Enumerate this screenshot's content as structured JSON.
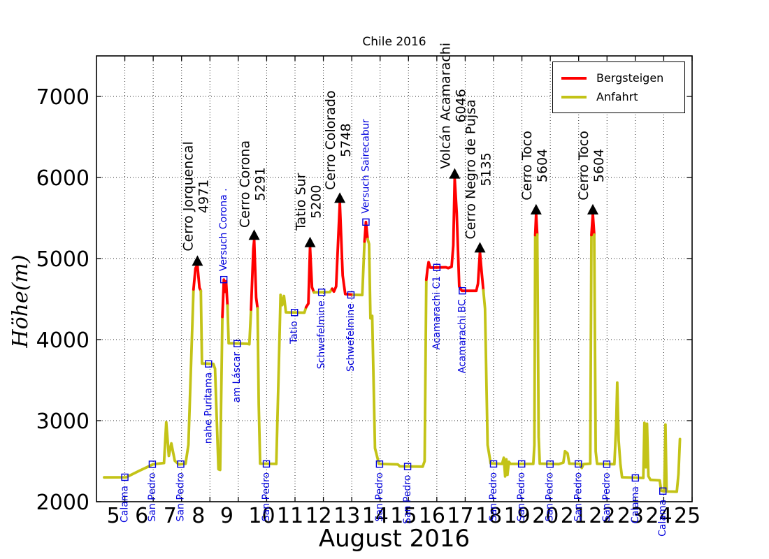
{
  "title": "Chile 2016",
  "xlabel": "August 2016",
  "ylabel": "Höhe(m)",
  "legend": {
    "items": [
      {
        "label": "Bergsteigen",
        "color": "#ff0000"
      },
      {
        "label": "Anfahrt",
        "color": "#c3c317"
      }
    ]
  },
  "colors": {
    "bergsteigen": "#ff0000",
    "anfahrt": "#c3c317",
    "waypoint_blue": "#0000dd",
    "annotation_black": "#000000",
    "grid": "#000000"
  },
  "chart_data": {
    "type": "line",
    "xlabel": "August 2016",
    "ylabel": "Höhe(m)",
    "title": "Chile 2016",
    "xlim": [
      4,
      25
    ],
    "ylim": [
      2000,
      7500
    ],
    "x_ticks": [
      5,
      6,
      7,
      8,
      9,
      10,
      11,
      12,
      13,
      14,
      15,
      16,
      17,
      18,
      19,
      20,
      21,
      22,
      23,
      24,
      25
    ],
    "y_ticks": [
      2000,
      3000,
      4000,
      5000,
      6000,
      7000
    ],
    "grid": "dotted",
    "legend_position": "upper right",
    "series": [
      {
        "name": "Bergsteigen",
        "color": "#ff0000"
      },
      {
        "name": "Anfahrt",
        "color": "#c3c317"
      }
    ],
    "segments": [
      {
        "series": "Anfahrt",
        "points": [
          [
            4.27,
            2300
          ],
          [
            5.05,
            2302
          ],
          [
            5.5,
            2380
          ],
          [
            6.0,
            2462
          ],
          [
            6.38,
            2478
          ],
          [
            6.46,
            2980
          ],
          [
            6.55,
            2565
          ],
          [
            6.64,
            2720
          ],
          [
            6.76,
            2505
          ],
          [
            6.9,
            2460
          ],
          [
            7.14,
            2468
          ],
          [
            7.24,
            2700
          ],
          [
            7.42,
            4620
          ]
        ]
      },
      {
        "series": "Bergsteigen",
        "points": [
          [
            7.42,
            4620
          ],
          [
            7.49,
            4880
          ],
          [
            7.56,
            4920
          ],
          [
            7.63,
            4640
          ],
          [
            7.68,
            4600
          ]
        ]
      },
      {
        "series": "Anfahrt",
        "points": [
          [
            7.68,
            4600
          ],
          [
            7.72,
            3705
          ],
          [
            8.12,
            3700
          ],
          [
            8.18,
            3640
          ],
          [
            8.3,
            2400
          ],
          [
            8.36,
            2392
          ],
          [
            8.44,
            4280
          ]
        ]
      },
      {
        "series": "Bergsteigen",
        "points": [
          [
            8.44,
            4280
          ],
          [
            8.49,
            4740
          ],
          [
            8.53,
            4590
          ],
          [
            8.57,
            4720
          ],
          [
            8.62,
            4420
          ]
        ]
      },
      {
        "series": "Anfahrt",
        "points": [
          [
            8.62,
            4420
          ],
          [
            8.66,
            3955
          ],
          [
            9.32,
            3948
          ],
          [
            9.39,
            3942
          ],
          [
            9.45,
            4370
          ]
        ]
      },
      {
        "series": "Bergsteigen",
        "points": [
          [
            9.45,
            4370
          ],
          [
            9.53,
            5120
          ],
          [
            9.56,
            5230
          ],
          [
            9.63,
            4520
          ],
          [
            9.68,
            4385
          ]
        ]
      },
      {
        "series": "Anfahrt",
        "points": [
          [
            9.68,
            4385
          ],
          [
            9.72,
            3200
          ],
          [
            9.77,
            2470
          ],
          [
            10.34,
            2466
          ],
          [
            10.43,
            3700
          ],
          [
            10.49,
            4552
          ],
          [
            10.55,
            4425
          ],
          [
            10.61,
            4538
          ],
          [
            10.68,
            4336
          ],
          [
            11.33,
            4332
          ],
          [
            11.39,
            4398
          ]
        ]
      },
      {
        "series": "Bergsteigen",
        "points": [
          [
            11.39,
            4398
          ],
          [
            11.47,
            4445
          ],
          [
            11.53,
            5140
          ],
          [
            11.6,
            4645
          ],
          [
            11.67,
            4582
          ]
        ]
      },
      {
        "series": "Anfahrt",
        "points": [
          [
            11.67,
            4582
          ],
          [
            12.23,
            4586
          ],
          [
            12.31,
            4628
          ]
        ]
      },
      {
        "series": "Bergsteigen",
        "points": [
          [
            12.31,
            4628
          ],
          [
            12.37,
            4592
          ],
          [
            12.45,
            4655
          ],
          [
            12.58,
            5690
          ],
          [
            12.68,
            4790
          ],
          [
            12.77,
            4562
          ],
          [
            13.06,
            4553
          ]
        ]
      },
      {
        "series": "Anfahrt",
        "points": [
          [
            13.06,
            4553
          ],
          [
            13.37,
            4550
          ],
          [
            13.45,
            5210
          ]
        ]
      },
      {
        "series": "Bergsteigen",
        "points": [
          [
            13.45,
            5210
          ],
          [
            13.5,
            5450
          ],
          [
            13.56,
            5240
          ]
        ]
      },
      {
        "series": "Anfahrt",
        "points": [
          [
            13.56,
            5240
          ],
          [
            13.61,
            5180
          ],
          [
            13.66,
            4262
          ],
          [
            13.72,
            4292
          ],
          [
            13.82,
            2660
          ],
          [
            13.96,
            2466
          ],
          [
            14.62,
            2460
          ],
          [
            14.7,
            2436
          ],
          [
            15.5,
            2433
          ],
          [
            15.57,
            2500
          ],
          [
            15.63,
            4740
          ]
        ]
      },
      {
        "series": "Bergsteigen",
        "points": [
          [
            15.63,
            4740
          ],
          [
            15.67,
            4870
          ],
          [
            15.71,
            4955
          ],
          [
            15.77,
            4888
          ],
          [
            16.32,
            4892
          ],
          [
            16.4,
            4882
          ],
          [
            16.52,
            4898
          ],
          [
            16.58,
            5160
          ],
          [
            16.63,
            5990
          ],
          [
            16.7,
            5560
          ],
          [
            16.79,
            4655
          ],
          [
            16.88,
            4602
          ],
          [
            17.39,
            4602
          ],
          [
            17.45,
            4690
          ],
          [
            17.52,
            5080
          ],
          [
            17.58,
            4830
          ],
          [
            17.64,
            4608
          ]
        ]
      },
      {
        "series": "Anfahrt",
        "points": [
          [
            17.64,
            4608
          ],
          [
            17.7,
            4380
          ],
          [
            17.79,
            2700
          ],
          [
            17.9,
            2472
          ],
          [
            18.3,
            2466
          ],
          [
            18.36,
            2542
          ],
          [
            18.41,
            2312
          ],
          [
            18.45,
            2522
          ],
          [
            18.49,
            2332
          ],
          [
            18.54,
            2492
          ],
          [
            18.6,
            2466
          ],
          [
            19.4,
            2466
          ],
          [
            19.44,
            2700
          ],
          [
            19.47,
            5290
          ]
        ]
      },
      {
        "series": "Bergsteigen",
        "points": [
          [
            19.47,
            5290
          ],
          [
            19.5,
            5550
          ],
          [
            19.54,
            5295
          ]
        ]
      },
      {
        "series": "Anfahrt",
        "points": [
          [
            19.54,
            5295
          ],
          [
            19.59,
            2800
          ],
          [
            19.63,
            2470
          ],
          [
            20.3,
            2464
          ],
          [
            20.46,
            2482
          ],
          [
            20.52,
            2622
          ],
          [
            20.61,
            2596
          ],
          [
            20.67,
            2470
          ],
          [
            21.05,
            2466
          ],
          [
            21.11,
            2416
          ],
          [
            21.17,
            2463
          ],
          [
            21.41,
            2470
          ],
          [
            21.45,
            5290
          ]
        ]
      },
      {
        "series": "Bergsteigen",
        "points": [
          [
            21.45,
            5290
          ],
          [
            21.5,
            5550
          ],
          [
            21.55,
            5295
          ]
        ]
      },
      {
        "series": "Anfahrt",
        "points": [
          [
            21.55,
            5295
          ],
          [
            21.6,
            2620
          ],
          [
            21.65,
            2468
          ],
          [
            22.26,
            2463
          ],
          [
            22.32,
            2920
          ],
          [
            22.36,
            3470
          ],
          [
            22.41,
            2760
          ],
          [
            22.47,
            2466
          ],
          [
            22.53,
            2302
          ],
          [
            23.28,
            2293
          ],
          [
            23.32,
            2972
          ],
          [
            23.37,
            2425
          ],
          [
            23.41,
            2962
          ],
          [
            23.46,
            2315
          ],
          [
            23.53,
            2270
          ],
          [
            23.86,
            2263
          ],
          [
            23.91,
            2136
          ],
          [
            24.02,
            2126
          ],
          [
            24.06,
            2952
          ],
          [
            24.1,
            2126
          ],
          [
            24.46,
            2123
          ],
          [
            24.52,
            2340
          ],
          [
            24.57,
            2772
          ]
        ]
      }
    ],
    "peaks": [
      {
        "name": "Cerro Jorquencal",
        "elevation": "4971",
        "day": 7.56,
        "alt": 4971
      },
      {
        "name": "Cerro Corona",
        "elevation": "5291",
        "day": 9.56,
        "alt": 5291
      },
      {
        "name": "Tatio Sur",
        "elevation": "5200",
        "day": 11.53,
        "alt": 5200
      },
      {
        "name": "Cerro Colorado",
        "elevation": "5748",
        "day": 12.58,
        "alt": 5748
      },
      {
        "name": "Volcán Acamarachi",
        "elevation": "6046",
        "day": 16.63,
        "alt": 6046
      },
      {
        "name": "Cerro Negro de Pujsa",
        "elevation": "5135",
        "day": 17.52,
        "alt": 5135
      },
      {
        "name": "Cerro Toco",
        "elevation": "5604",
        "day": 19.5,
        "alt": 5604
      },
      {
        "name": "Cerro Toco",
        "elevation": "5604",
        "day": 21.5,
        "alt": 5604
      }
    ],
    "waypoints": [
      {
        "label": "Calama",
        "day": 5.0,
        "alt": 2302,
        "dir": "down"
      },
      {
        "label": "San Pedro",
        "day": 5.97,
        "alt": 2462,
        "dir": "down"
      },
      {
        "label": "San Pedro",
        "day": 6.97,
        "alt": 2464,
        "dir": "down"
      },
      {
        "label": "nahe Puritama",
        "day": 7.95,
        "alt": 3700,
        "dir": "down"
      },
      {
        "label": "Versuch Corona .",
        "day": 8.49,
        "alt": 4740,
        "dir": "up"
      },
      {
        "label": "am Láscar",
        "day": 8.96,
        "alt": 3950,
        "dir": "down"
      },
      {
        "label": "San Pedro",
        "day": 9.99,
        "alt": 2466,
        "dir": "down"
      },
      {
        "label": "Tatio",
        "day": 10.98,
        "alt": 4334,
        "dir": "down"
      },
      {
        "label": "Schwefelmine",
        "day": 11.94,
        "alt": 4584,
        "dir": "down"
      },
      {
        "label": "Schwefelmine",
        "day": 12.97,
        "alt": 4551,
        "dir": "down"
      },
      {
        "label": "Versuch Sairecabur",
        "day": 13.5,
        "alt": 5450,
        "dir": "up"
      },
      {
        "label": "San Pedro",
        "day": 13.98,
        "alt": 2464,
        "dir": "down"
      },
      {
        "label": "San Pedro",
        "day": 14.97,
        "alt": 2434,
        "dir": "down"
      },
      {
        "label": "Acamarachi C1",
        "day": 16.0,
        "alt": 4890,
        "dir": "down"
      },
      {
        "label": "Acamarachi BC",
        "day": 16.9,
        "alt": 4602,
        "dir": "down"
      },
      {
        "label": "San Pedro",
        "day": 18.0,
        "alt": 2466,
        "dir": "down"
      },
      {
        "label": "San Pedro",
        "day": 18.99,
        "alt": 2466,
        "dir": "down"
      },
      {
        "label": "San Pedro",
        "day": 19.99,
        "alt": 2464,
        "dir": "down"
      },
      {
        "label": "San Pedro",
        "day": 20.99,
        "alt": 2466,
        "dir": "down"
      },
      {
        "label": "San Pedro",
        "day": 21.99,
        "alt": 2463,
        "dir": "down"
      },
      {
        "label": "Calama",
        "day": 23.0,
        "alt": 2293,
        "dir": "down"
      },
      {
        "label": "Calama",
        "day": 23.97,
        "alt": 2131,
        "dir": "down"
      }
    ]
  }
}
